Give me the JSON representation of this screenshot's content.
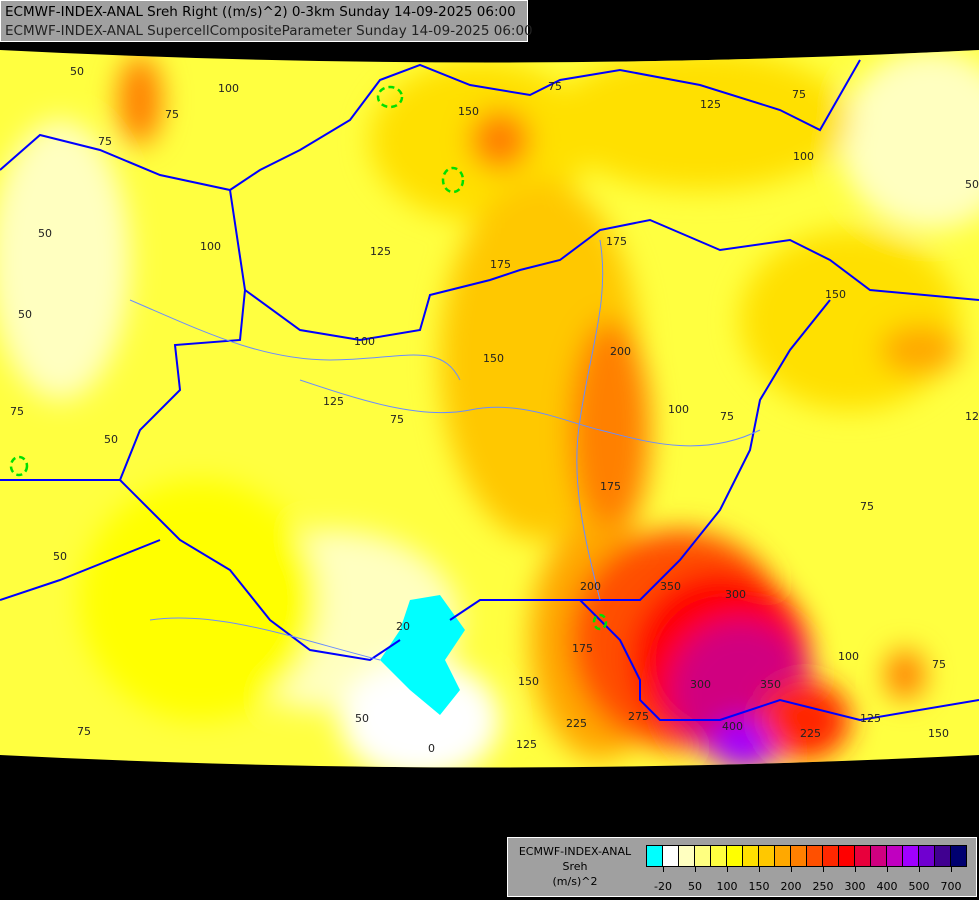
{
  "header": {
    "line1": "ECMWF-INDEX-ANAL Sreh Right ((m/s)^2) 0-3km Sunday 14-09-2025 06:00",
    "line2": "ECMWF-INDEX-ANAL SupercellCompositeParameter Sunday 14-09-2025 06:00"
  },
  "legend": {
    "model": "ECMWF-INDEX-ANAL",
    "parameter": "Sreh",
    "unit": "(m/s)^2",
    "colors": [
      "#00ffff",
      "#ffffff",
      "#ffffc0",
      "#ffff80",
      "#ffff40",
      "#ffff00",
      "#ffe000",
      "#ffc800",
      "#ffa800",
      "#ff8000",
      "#ff5000",
      "#ff2800",
      "#ff0000",
      "#e8003c",
      "#d00080",
      "#c000c0",
      "#a000ff",
      "#7000d0",
      "#400090",
      "#000070"
    ],
    "labels": [
      "-20",
      "50",
      "100",
      "150",
      "200",
      "250",
      "300",
      "400",
      "500",
      "700"
    ]
  },
  "map": {
    "contour_labels": [
      "50",
      "100",
      "75",
      "75",
      "50",
      "100",
      "125",
      "150",
      "75",
      "125",
      "100",
      "75",
      "50",
      "50",
      "75",
      "50",
      "175",
      "175",
      "200",
      "150",
      "100",
      "125",
      "100",
      "75",
      "50",
      "75",
      "175",
      "75",
      "125",
      "150",
      "75",
      "50",
      "20",
      "0",
      "150",
      "175",
      "225",
      "125",
      "200",
      "350",
      "300",
      "300",
      "350",
      "400",
      "275",
      "100",
      "75",
      "125",
      "150",
      "225"
    ],
    "border_color": "#0000ff",
    "river_color": "#6a8cff",
    "scp_contour_color": "#00e000"
  }
}
